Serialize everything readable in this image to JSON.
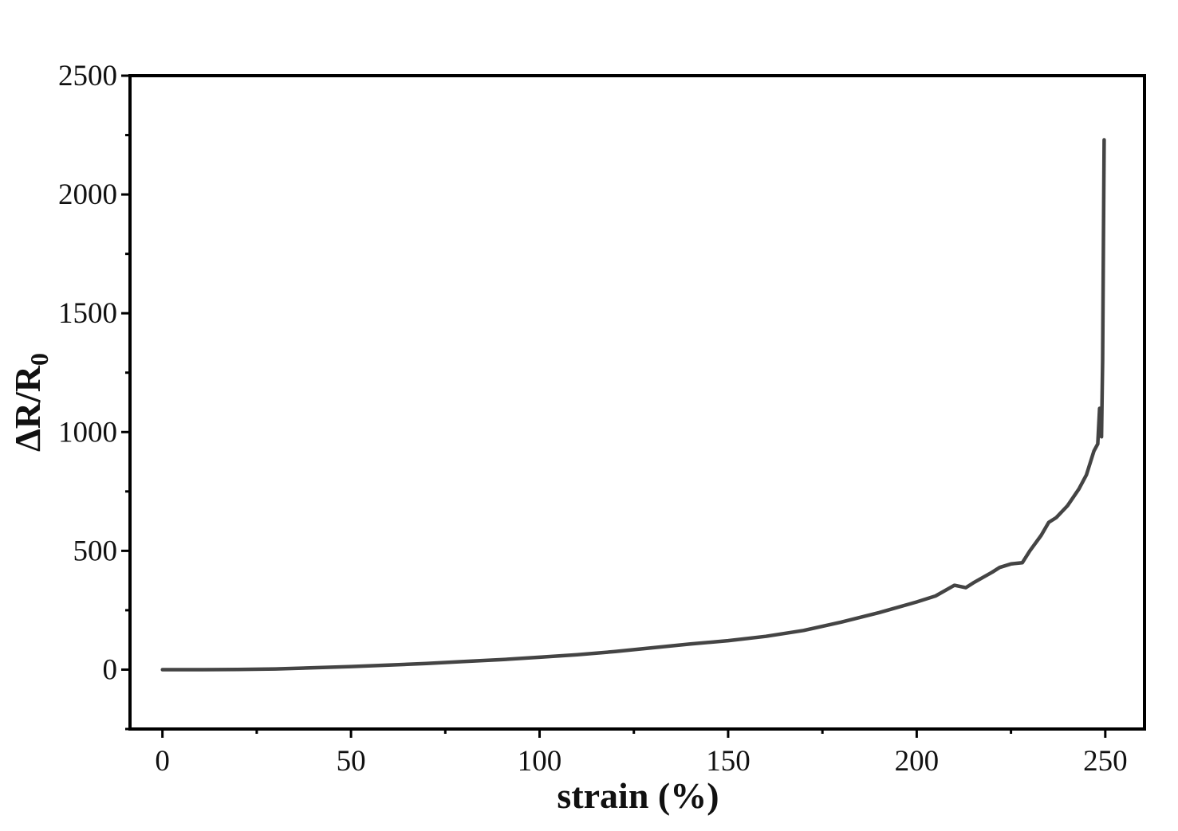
{
  "chart_data": {
    "type": "line",
    "xlabel": "strain (%)",
    "ylabel": "ΔR/R",
    "ylabel_sub": "0",
    "x": [
      0,
      10,
      20,
      30,
      40,
      50,
      60,
      70,
      80,
      90,
      100,
      110,
      120,
      130,
      140,
      150,
      160,
      170,
      180,
      190,
      200,
      205,
      210,
      213,
      215,
      220,
      222,
      225,
      228,
      230,
      233,
      235,
      237,
      240,
      243,
      245,
      247,
      248,
      248.5,
      249,
      249.3,
      249.5,
      249.7
    ],
    "values": [
      0,
      0,
      1,
      3,
      8,
      13,
      19,
      26,
      34,
      42,
      52,
      63,
      76,
      92,
      108,
      122,
      140,
      165,
      200,
      240,
      285,
      310,
      355,
      345,
      365,
      410,
      430,
      445,
      450,
      500,
      565,
      620,
      640,
      690,
      760,
      820,
      920,
      950,
      1100,
      980,
      1300,
      1800,
      2230
    ],
    "color": "#444444",
    "xlim": [
      -8.6,
      260.4
    ],
    "ylim": [
      -250,
      2500
    ],
    "xticks": [
      0,
      50,
      100,
      150,
      200,
      250
    ],
    "yticks": [
      0,
      500,
      1000,
      1500,
      2000,
      2500
    ],
    "xminorticks": [
      25,
      75,
      125,
      175,
      225
    ],
    "yminorticks": [
      -250,
      250,
      750,
      1250,
      1750,
      2250
    ]
  }
}
